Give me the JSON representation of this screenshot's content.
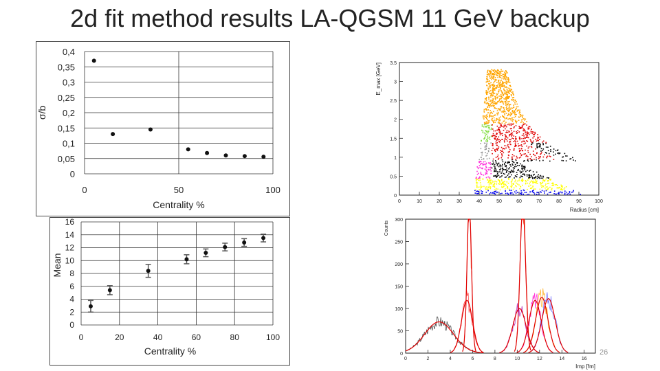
{
  "slide": {
    "title": "2d fit method results LA-QGSM 11 GeV backup",
    "page_number": "26"
  },
  "chart_data": [
    {
      "type": "scatter",
      "title": "",
      "xlabel": "Centrality %",
      "ylabel": "σ/b",
      "xlim": [
        0,
        100
      ],
      "ylim": [
        0,
        0.4
      ],
      "x_ticks": [
        "0",
        "50",
        "100"
      ],
      "y_ticks": [
        "0",
        "0,05",
        "0,1",
        "0,15",
        "0,2",
        "0,25",
        "0,3",
        "0,35",
        "0,4"
      ],
      "grid": true,
      "x": [
        5,
        15,
        35,
        55,
        65,
        75,
        85,
        95
      ],
      "y": [
        0.37,
        0.13,
        0.145,
        0.08,
        0.068,
        0.06,
        0.058,
        0.056
      ]
    },
    {
      "type": "scatter",
      "title": "",
      "xlabel": "Centrality %",
      "ylabel": "Mean",
      "xlim": [
        0,
        100
      ],
      "ylim": [
        0,
        16
      ],
      "x_ticks": [
        "0",
        "20",
        "40",
        "60",
        "80",
        "100"
      ],
      "y_ticks": [
        "0",
        "2",
        "4",
        "6",
        "8",
        "10",
        "12",
        "14",
        "16"
      ],
      "grid": true,
      "x": [
        5,
        15,
        35,
        55,
        65,
        75,
        85,
        95
      ],
      "y": [
        2.9,
        5.4,
        8.4,
        10.2,
        11.2,
        12.1,
        12.8,
        13.5
      ],
      "yerr": [
        0.9,
        0.7,
        1.0,
        0.7,
        0.6,
        0.6,
        0.6,
        0.6
      ]
    },
    {
      "type": "scatter",
      "title": "",
      "xlabel": "Radius [cm]",
      "ylabel": "E_max [GeV]",
      "xlim": [
        0,
        100
      ],
      "ylim": [
        0,
        3.5
      ],
      "x_ticks": [
        "0",
        "10",
        "20",
        "30",
        "40",
        "50",
        "60",
        "70",
        "80",
        "90",
        "100"
      ],
      "y_ticks": [
        "0",
        "0.5",
        "1",
        "1.5",
        "2",
        "2.5",
        "3",
        "3.5"
      ],
      "grid": false,
      "series_colors": [
        "#ffa500",
        "#7fdc3c",
        "#e00000",
        "#9a9a9a",
        "#000000",
        "#ff33dd",
        "#ffff00",
        "#0000ee"
      ]
    },
    {
      "type": "line",
      "title": "",
      "xlabel": "Imp [fm]",
      "ylabel": "Counts",
      "xlim": [
        0,
        17
      ],
      "ylim": [
        0,
        300
      ],
      "x_ticks": [
        "0",
        "2",
        "4",
        "6",
        "8",
        "10",
        "12",
        "14",
        "16"
      ],
      "y_ticks": [
        "0",
        "50",
        "100",
        "150",
        "200",
        "250",
        "300"
      ],
      "grid": false,
      "peaks": [
        {
          "mean": 3.0,
          "sigma": 1.3,
          "amp": 70,
          "color": "#222222"
        },
        {
          "mean": 5.5,
          "sigma": 0.5,
          "amp": 118,
          "color": "#ff2222"
        },
        {
          "mean": 5.7,
          "sigma": 0.2,
          "amp": 330,
          "color": "#ff3300"
        },
        {
          "mean": 10.5,
          "sigma": 0.25,
          "amp": 330,
          "color": "#ff3300"
        },
        {
          "mean": 10.2,
          "sigma": 0.6,
          "amp": 100,
          "color": "#aa00aa"
        },
        {
          "mean": 11.6,
          "sigma": 0.55,
          "amp": 118,
          "color": "#ff00cc"
        },
        {
          "mean": 12.2,
          "sigma": 0.55,
          "amp": 125,
          "color": "#ffa500"
        },
        {
          "mean": 12.8,
          "sigma": 0.6,
          "amp": 122,
          "color": "#5555ff"
        }
      ]
    }
  ]
}
